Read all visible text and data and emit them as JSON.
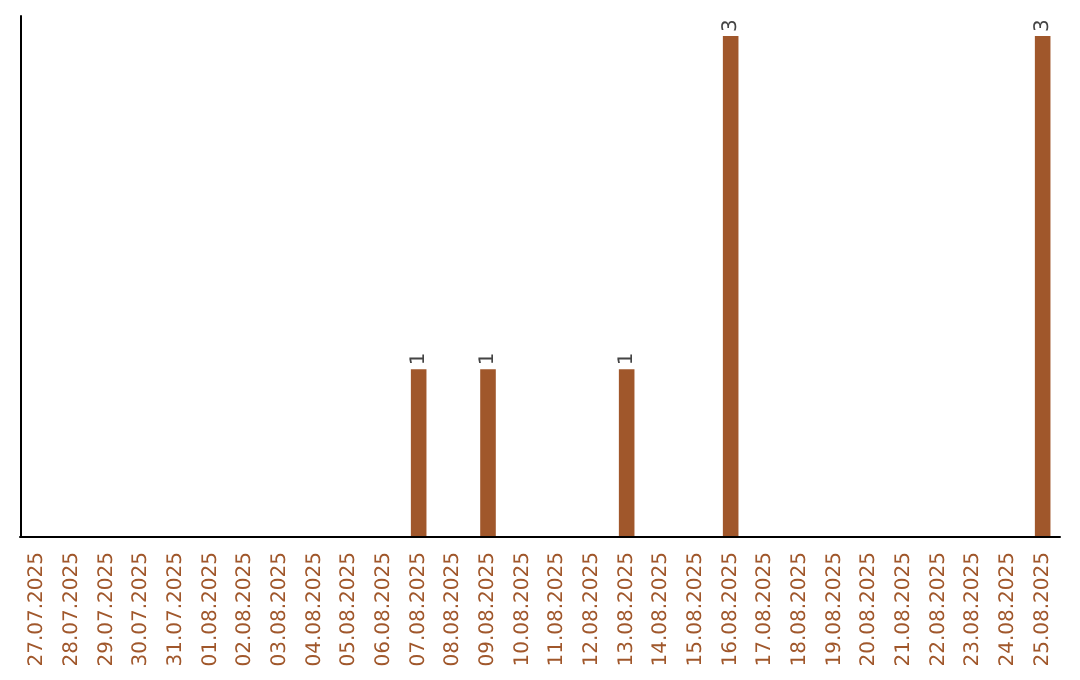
{
  "chart_data": {
    "type": "bar",
    "categories": [
      "27.07.2025",
      "28.07.2025",
      "29.07.2025",
      "30.07.2025",
      "31.07.2025",
      "01.08.2025",
      "02.08.2025",
      "03.08.2025",
      "04.08.2025",
      "05.08.2025",
      "06.08.2025",
      "07.08.2025",
      "08.08.2025",
      "09.08.2025",
      "10.08.2025",
      "11.08.2025",
      "12.08.2025",
      "13.08.2025",
      "14.08.2025",
      "15.08.2025",
      "16.08.2025",
      "17.08.2025",
      "18.08.2025",
      "19.08.2025",
      "20.08.2025",
      "21.08.2025",
      "22.08.2025",
      "23.08.2025",
      "24.08.2025",
      "25.08.2025"
    ],
    "values": [
      0,
      0,
      0,
      0,
      0,
      0,
      0,
      0,
      0,
      0,
      0,
      1,
      0,
      1,
      0,
      0,
      0,
      1,
      0,
      0,
      3,
      0,
      0,
      0,
      0,
      0,
      0,
      0,
      0,
      3
    ],
    "value_labels": [
      null,
      null,
      null,
      null,
      null,
      null,
      null,
      null,
      null,
      null,
      null,
      "1",
      null,
      "1",
      null,
      null,
      null,
      "1",
      null,
      null,
      "3",
      null,
      null,
      null,
      null,
      null,
      null,
      null,
      null,
      "3"
    ],
    "color": "#a0572b"
  }
}
